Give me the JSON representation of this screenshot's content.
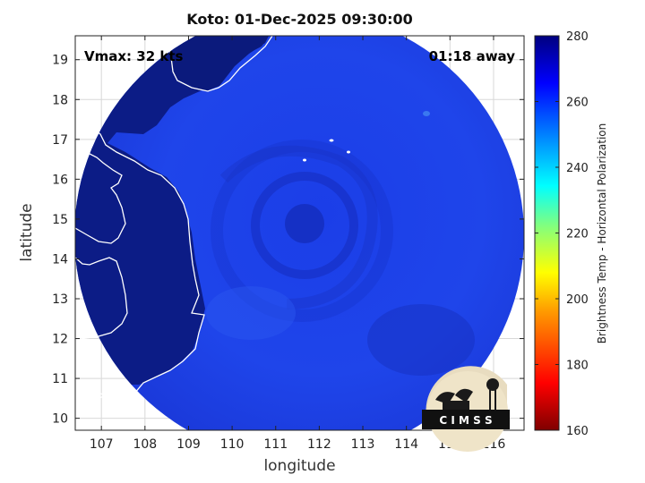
{
  "title": "Koto: 01-Dec-2025 09:30:00",
  "xlabel": "longitude",
  "ylabel": "latitude",
  "annotations": {
    "vmax": "Vmax: 32 kts",
    "away": "01:18 away"
  },
  "colorbar": {
    "label": "Brightness Temp - Horizontal Polarization",
    "ticks": [
      160,
      180,
      200,
      220,
      240,
      260,
      280
    ],
    "range": [
      160,
      280
    ]
  },
  "logo": {
    "text": "C I M S S"
  },
  "colors": {
    "ocean_blue": "#1e40e6",
    "land_navy": "#0b1a7c",
    "coastline": "#ffffff"
  },
  "chart_data": {
    "type": "heatmap",
    "title": "Koto: 01-Dec-2025 09:30:00",
    "xlabel": "longitude",
    "ylabel": "latitude",
    "xlim": [
      106.4,
      116.7
    ],
    "ylim": [
      9.7,
      19.6
    ],
    "xticks": [
      107,
      108,
      109,
      110,
      111,
      112,
      113,
      114,
      115,
      116
    ],
    "yticks": [
      10,
      11,
      12,
      13,
      14,
      15,
      16,
      17,
      18,
      19
    ],
    "storm_center": {
      "lon": 111.8,
      "lat": 14.7
    },
    "grid": true
  }
}
